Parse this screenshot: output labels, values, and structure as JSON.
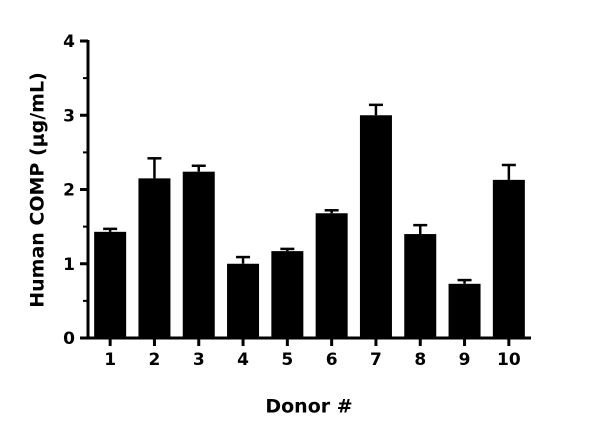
{
  "chart_data": {
    "type": "bar",
    "xlabel": "Donor #",
    "ylabel": "Human COMP (μg/mL)",
    "categories": [
      "1",
      "2",
      "3",
      "4",
      "5",
      "6",
      "7",
      "8",
      "9",
      "10"
    ],
    "values": [
      1.43,
      2.15,
      2.24,
      1.0,
      1.17,
      1.68,
      3.0,
      1.4,
      0.73,
      2.13
    ],
    "errors": [
      0.04,
      0.27,
      0.08,
      0.09,
      0.03,
      0.04,
      0.14,
      0.12,
      0.05,
      0.2
    ],
    "color": "#000000",
    "ylim": [
      0,
      4
    ],
    "yticks": [
      0,
      1,
      2,
      3,
      4
    ],
    "yminorticks": [
      0.5,
      1.5,
      2.5,
      3.5
    ]
  }
}
